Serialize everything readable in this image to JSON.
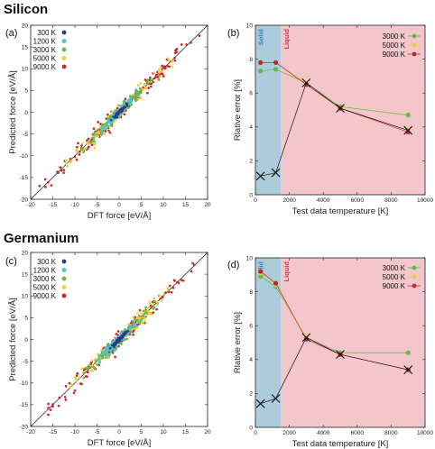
{
  "sections": [
    {
      "title": "Silicon"
    },
    {
      "title": "Germanium"
    }
  ],
  "colors": {
    "300 K": "#2a3a8c",
    "1200 K": "#4ec3c7",
    "3000 K": "#63b848",
    "5000 K": "#e8cf3a",
    "9000 K": "#c4262e",
    "solid_region": "#a9c9d9",
    "liquid_region": "#f2c3c8"
  },
  "chart_data": [
    {
      "panel": "(a)",
      "type": "scatter",
      "xlabel": "DFT force [eV/Å]",
      "ylabel": "Predicted force [eV/Å]",
      "xlim": [
        -20,
        20
      ],
      "ylim": [
        -20,
        20
      ],
      "xticks": [
        -20,
        -15,
        -10,
        -5,
        0,
        5,
        10,
        15,
        20
      ],
      "yticks": [
        -20,
        -15,
        -10,
        -5,
        0,
        5,
        10,
        15,
        20
      ],
      "legend": [
        "300 K",
        "1200 K",
        "3000 K",
        "5000 K",
        "9000 K"
      ],
      "legend_position": "top-left",
      "diagonal": true,
      "series": [
        {
          "name": "300 K",
          "x_range": [
            -1.8,
            1.8
          ],
          "spread": 0.35,
          "count": 70
        },
        {
          "name": "1200 K",
          "x_range": [
            -4,
            4
          ],
          "spread": 0.8,
          "count": 110
        },
        {
          "name": "3000 K",
          "x_range": [
            -9,
            9
          ],
          "spread": 1.2,
          "count": 130
        },
        {
          "name": "5000 K",
          "x_range": [
            -12,
            12
          ],
          "spread": 1.6,
          "count": 130
        },
        {
          "name": "9000 K",
          "x_range": [
            -18,
            19
          ],
          "spread": 2.0,
          "count": 150
        }
      ]
    },
    {
      "panel": "(b)",
      "type": "line",
      "xlabel": "Test data temperature [K]",
      "ylabel": "Rlative error [%]",
      "xlim": [
        0,
        10000
      ],
      "ylim": [
        0,
        10
      ],
      "xticks": [
        0,
        2000,
        4000,
        6000,
        8000,
        10000
      ],
      "yticks": [
        0,
        2,
        4,
        6,
        8,
        10
      ],
      "regions": [
        {
          "label": "Solid",
          "from": 0,
          "to": 1500
        },
        {
          "label": "Liquid",
          "from": 1500,
          "to": 10000
        }
      ],
      "legend": [
        "3000 K",
        "5000 K",
        "9000 K"
      ],
      "legend_position": "top-right",
      "series": [
        {
          "name": "3000 K",
          "x": [
            300,
            1200,
            3000,
            5000,
            9000
          ],
          "y": [
            7.3,
            7.4,
            6.6,
            5.2,
            4.7
          ]
        },
        {
          "name": "5000 K",
          "x": [
            300,
            1200,
            3000,
            5000,
            9000
          ],
          "y": [
            7.8,
            7.8,
            6.6,
            5.1,
            3.8
          ]
        },
        {
          "name": "9000 K",
          "x": [
            300,
            1200,
            3000,
            5000,
            9000
          ],
          "y": [
            7.8,
            7.8,
            6.5,
            5.1,
            3.7
          ]
        },
        {
          "name": "",
          "marker": "x",
          "x": [
            300,
            1200,
            3000,
            5000,
            9000
          ],
          "y": [
            1.1,
            1.3,
            6.6,
            5.1,
            3.8
          ]
        }
      ]
    },
    {
      "panel": "(c)",
      "type": "scatter",
      "xlabel": "DFT force [eV/Å]",
      "ylabel": "Predicted force [eV/Å]",
      "xlim": [
        -20,
        20
      ],
      "ylim": [
        -20,
        20
      ],
      "xticks": [
        -20,
        -15,
        -10,
        -5,
        0,
        5,
        10,
        15,
        20
      ],
      "yticks": [
        -20,
        -15,
        -10,
        -5,
        0,
        5,
        10,
        15,
        20
      ],
      "legend": [
        "300 K",
        "1200 K",
        "3000 K",
        "5000 K",
        "9000 K"
      ],
      "legend_position": "top-left",
      "diagonal": true,
      "series": [
        {
          "name": "300 K",
          "x_range": [
            -2,
            2
          ],
          "spread": 0.4,
          "count": 70
        },
        {
          "name": "1200 K",
          "x_range": [
            -4.5,
            4.5
          ],
          "spread": 1.0,
          "count": 110
        },
        {
          "name": "3000 K",
          "x_range": [
            -8,
            8
          ],
          "spread": 1.3,
          "count": 130
        },
        {
          "name": "5000 K",
          "x_range": [
            -11,
            11
          ],
          "spread": 1.7,
          "count": 130
        },
        {
          "name": "9000 K",
          "x_range": [
            -16,
            17
          ],
          "spread": 2.2,
          "count": 150
        }
      ]
    },
    {
      "panel": "(d)",
      "type": "line",
      "xlabel": "Test data temperature [K]",
      "ylabel": "Rlative error [%]",
      "xlim": [
        0,
        10000
      ],
      "ylim": [
        0,
        10
      ],
      "xticks": [
        0,
        2000,
        4000,
        6000,
        8000,
        10000
      ],
      "yticks": [
        0,
        2,
        4,
        6,
        8,
        10
      ],
      "regions": [
        {
          "label": "Solid",
          "from": 0,
          "to": 1500
        },
        {
          "label": "Liquid",
          "from": 1500,
          "to": 10000
        }
      ],
      "legend": [
        "3000 K",
        "5000 K",
        "9000 K"
      ],
      "legend_position": "top-right",
      "series": [
        {
          "name": "3000 K",
          "x": [
            300,
            1200,
            3000,
            5000,
            9000
          ],
          "y": [
            8.9,
            8.3,
            5.3,
            4.4,
            4.4
          ]
        },
        {
          "name": "5000 K",
          "x": [
            300,
            1200,
            3000,
            5000,
            9000
          ],
          "y": [
            9.1,
            8.4,
            5.3,
            4.3,
            3.4
          ]
        },
        {
          "name": "9000 K",
          "x": [
            300,
            1200,
            3000,
            5000,
            9000
          ],
          "y": [
            9.2,
            8.5,
            5.2,
            4.3,
            3.4
          ]
        },
        {
          "name": "",
          "marker": "x",
          "x": [
            300,
            1200,
            3000,
            5000,
            9000
          ],
          "y": [
            1.4,
            1.7,
            5.3,
            4.3,
            3.4
          ]
        }
      ]
    }
  ]
}
